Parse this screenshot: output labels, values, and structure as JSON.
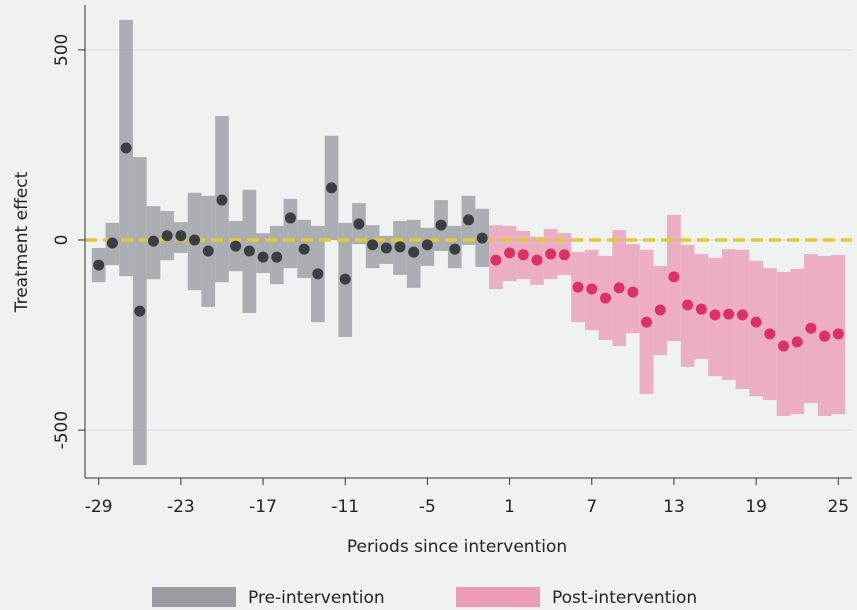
{
  "chart_data": {
    "type": "event_study",
    "x_label": "Periods since intervention",
    "y_label": "Treatment effect",
    "xlim": [
      -30,
      26
    ],
    "ylim": [
      -626,
      618
    ],
    "xticks": [
      -29,
      -23,
      -17,
      -11,
      -5,
      1,
      7,
      13,
      19,
      25
    ],
    "yticks": [
      -500,
      0,
      500
    ],
    "grid": true,
    "hline": 0,
    "hline_color": "#e6c832",
    "series": [
      {
        "name": "Pre-intervention",
        "color": "#9a9c9f",
        "dot_color": "#3a3d41",
        "x": [
          -29,
          -28,
          -27,
          -26,
          -25,
          -24,
          -23,
          -22,
          -21,
          -20,
          -19,
          -18,
          -17,
          -16,
          -15,
          -14,
          -13,
          -12,
          -11,
          -10,
          -9,
          -8,
          -7,
          -6,
          -5,
          -4,
          -3,
          -2,
          -1
        ],
        "values": [
          -66,
          -8,
          242,
          -187,
          -3,
          11,
          11,
          0,
          -29,
          105,
          -16,
          -29,
          -45,
          -45,
          58,
          -24,
          -89,
          137,
          -103,
          42,
          -13,
          -21,
          -18,
          -32,
          -13,
          39,
          -24,
          53,
          5
        ],
        "ci_low": [
          -111,
          -66,
          -95,
          -592,
          -103,
          -53,
          -34,
          -132,
          -176,
          -111,
          -82,
          -192,
          -87,
          -116,
          -74,
          -100,
          -216,
          0,
          -255,
          -11,
          -74,
          -63,
          -92,
          -126,
          -68,
          -29,
          -74,
          -13,
          -71
        ],
        "ci_high": [
          -21,
          45,
          579,
          218,
          89,
          76,
          47,
          124,
          116,
          326,
          50,
          132,
          18,
          37,
          108,
          53,
          37,
          274,
          45,
          97,
          39,
          11,
          50,
          53,
          32,
          105,
          37,
          116,
          82
        ]
      },
      {
        "name": "Post-intervention",
        "color": "#eb9bb5",
        "dot_color": "#df2f68",
        "x": [
          0,
          1,
          2,
          3,
          4,
          5,
          6,
          7,
          8,
          9,
          10,
          11,
          12,
          13,
          14,
          15,
          16,
          17,
          18,
          19,
          20,
          21,
          22,
          23,
          24,
          25
        ],
        "values": [
          -53,
          -34,
          -39,
          -53,
          -37,
          -39,
          -124,
          -129,
          -153,
          -126,
          -137,
          -216,
          -184,
          -97,
          -171,
          -182,
          -197,
          -195,
          -197,
          -216,
          -247,
          -279,
          -268,
          -232,
          -253,
          -247
        ],
        "ci_low": [
          -129,
          -108,
          -103,
          -118,
          -103,
          -92,
          -216,
          -237,
          -263,
          -279,
          -245,
          -405,
          -303,
          -266,
          -334,
          -313,
          -358,
          -368,
          -392,
          -411,
          -421,
          -463,
          -458,
          -429,
          -463,
          -458
        ],
        "ci_high": [
          39,
          37,
          24,
          8,
          29,
          18,
          -32,
          -26,
          -42,
          26,
          -11,
          -26,
          -68,
          66,
          -13,
          -37,
          -47,
          -24,
          -26,
          -55,
          -74,
          -84,
          -76,
          -37,
          -42,
          -39
        ]
      }
    ]
  }
}
